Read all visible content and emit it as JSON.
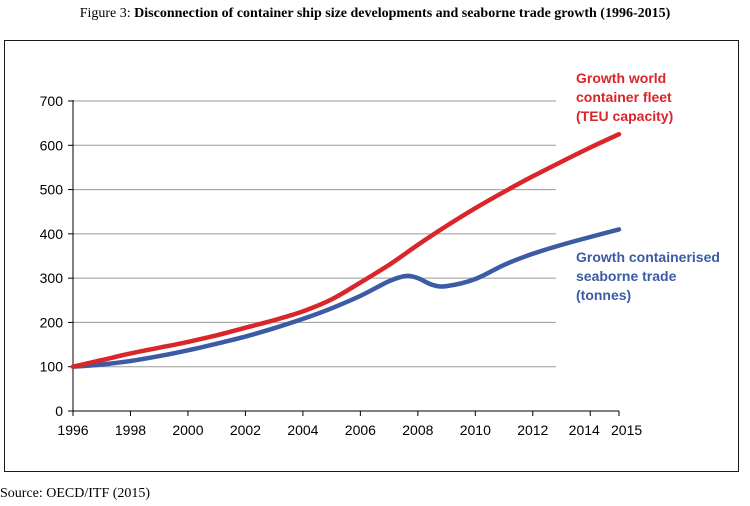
{
  "caption": {
    "prefix": "Figure 3: ",
    "title": "Disconnection of container ship size developments and seaborne trade growth (1996-2015)"
  },
  "source": "Source: OECD/ITF (2015)",
  "chart_data": {
    "type": "line",
    "title": "",
    "xlabel": "",
    "ylabel": "",
    "xlim": [
      1996,
      2015
    ],
    "ylim": [
      0,
      700
    ],
    "grid": "horizontal",
    "legend": "direct labels at line ends",
    "x_ticks": [
      "1996",
      "1998",
      "2000",
      "2002",
      "2004",
      "2006",
      "2008",
      "2010",
      "2012",
      "2014",
      "2015"
    ],
    "y_ticks": [
      "0",
      "100",
      "200",
      "300",
      "400",
      "500",
      "600",
      "700"
    ],
    "series": [
      {
        "label_lines": [
          "Growth world",
          "container fleet",
          "(TEU capacity)"
        ],
        "color": "#d9262b",
        "x": [
          1996,
          1997,
          1998,
          1999,
          2000,
          2001,
          2002,
          2003,
          2004,
          2005,
          2006,
          2007,
          2008,
          2009,
          2010,
          2011,
          2012,
          2013,
          2014,
          2015
        ],
        "y": [
          100,
          115,
          130,
          143,
          156,
          171,
          188,
          205,
          225,
          252,
          290,
          330,
          375,
          418,
          458,
          495,
          530,
          563,
          595,
          625
        ]
      },
      {
        "label_lines": [
          "Growth containerised",
          "seaborne trade",
          "(tonnes)"
        ],
        "color": "#3b5ba5",
        "x": [
          1996,
          1997,
          1998,
          1999,
          2000,
          2001,
          2002,
          2003,
          2004,
          2005,
          2006,
          2007,
          2007.6,
          2008,
          2008.5,
          2009,
          2010,
          2011,
          2012,
          2013,
          2014,
          2015
        ],
        "y": [
          100,
          105,
          113,
          124,
          137,
          152,
          168,
          187,
          208,
          232,
          260,
          293,
          305,
          300,
          285,
          282,
          298,
          330,
          355,
          375,
          393,
          410
        ]
      }
    ]
  }
}
